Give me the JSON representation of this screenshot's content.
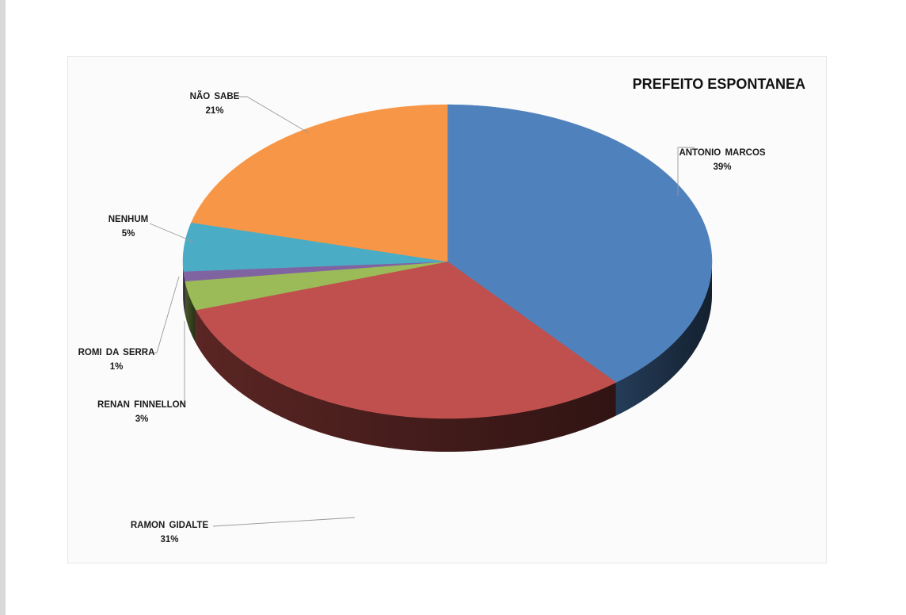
{
  "chart_data": {
    "type": "pie",
    "title": "PREFEITO ESPONTANEA",
    "slices": [
      {
        "label": "ANTONIO  MARCOS",
        "value": 39,
        "value_label": "39%",
        "color": "#4f81bd"
      },
      {
        "label": "RAMON  GIDALTE",
        "value": 31,
        "value_label": "31%",
        "color": "#c0504d"
      },
      {
        "label": "RENAN  FINNELLON",
        "value": 3,
        "value_label": "3%",
        "color": "#9bbb59"
      },
      {
        "label": "ROMI  DA  SERRA",
        "value": 1,
        "value_label": "1%",
        "color": "#8064a2"
      },
      {
        "label": "NENHUM",
        "value": 5,
        "value_label": "5%",
        "color": "#4bacc6"
      },
      {
        "label": "NÃO  SABE",
        "value": 21,
        "value_label": "21%",
        "color": "#f79646"
      }
    ],
    "legend": "none",
    "style": "3d"
  }
}
